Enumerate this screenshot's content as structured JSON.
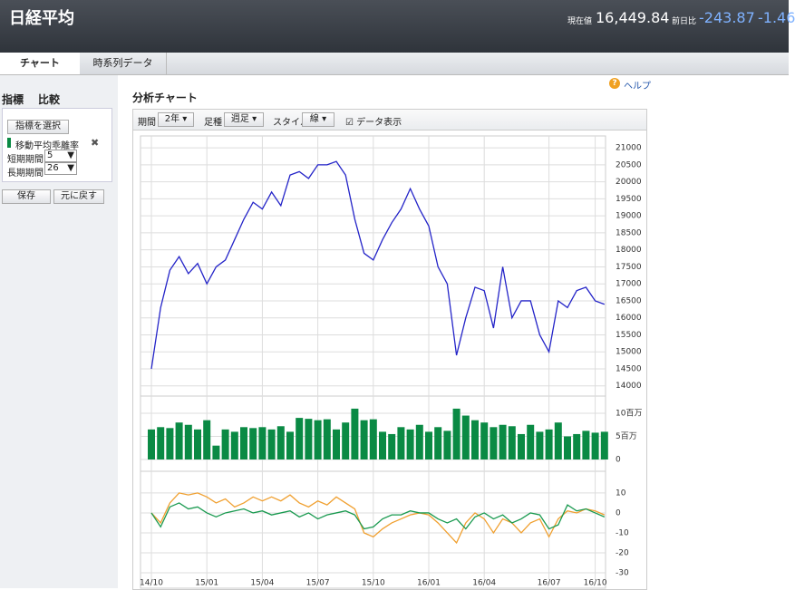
{
  "header": {
    "title": "日経平均",
    "price_label": "現在値",
    "price": "16,449.84",
    "change_label": "前日比",
    "change": "-243.87",
    "change_pct": "-1.46"
  },
  "tabs": [
    "チャート",
    "時系列データ"
  ],
  "sidebar": {
    "tabs": [
      "指標",
      "比較"
    ],
    "select": "指標を選択",
    "indicator": "移動平均乖離率",
    "short_label": "短期期間",
    "short_value": "5",
    "long_label": "長期期間",
    "long_value": "26",
    "save": "保存",
    "reset": "元に戻す"
  },
  "panel": {
    "help": "ヘルプ",
    "title": "分析チャート",
    "period_label": "期間",
    "period": "2年",
    "bar_label": "足種",
    "bar": "週足",
    "style_label": "スタイル",
    "style": "線",
    "show_data": "データ表示"
  },
  "chart_data": [
    {
      "type": "line",
      "color": "#2424c8",
      "values": [
        14500,
        16300,
        17400,
        17800,
        17300,
        17600,
        17000,
        17500,
        17700,
        18300,
        18900,
        19400,
        19200,
        19700,
        19300,
        20200,
        20300,
        20100,
        20500,
        20500,
        20600,
        20200,
        18900,
        17900,
        17700,
        18300,
        18800,
        19200,
        19800,
        19200,
        18700,
        17500,
        17000,
        14900,
        16000,
        16900,
        16800,
        15700,
        17500,
        16000,
        16500,
        16500,
        15500,
        15000,
        16500,
        16300,
        16800,
        16900,
        16500,
        16400
      ],
      "ylim": [
        13700,
        21350
      ],
      "yticks": [
        14000,
        14500,
        15000,
        15500,
        16000,
        16500,
        17000,
        17500,
        18000,
        18500,
        19000,
        19500,
        20000,
        20500,
        21000
      ],
      "grid": true
    },
    {
      "type": "bar",
      "color": "#0a8a44",
      "values": [
        6.5,
        7,
        6.8,
        8,
        7.5,
        6.5,
        8.5,
        3,
        6.5,
        6,
        7,
        6.8,
        7,
        6.5,
        7.2,
        6,
        9,
        8.8,
        8.5,
        8.7,
        6.5,
        8,
        11,
        8.5,
        8.7,
        6,
        5.5,
        7,
        6.5,
        7.5,
        6,
        7,
        6.2,
        11,
        9.5,
        8.5,
        8,
        7,
        7.5,
        7.2,
        5.5,
        7.5,
        6,
        6.5,
        8,
        5,
        5.5,
        6.2,
        5.8,
        6
      ],
      "ylim": [
        0,
        13.5
      ],
      "yticks": [
        0,
        {
          "value": 5,
          "label": "5百万"
        },
        {
          "value": 10,
          "label": "10百万"
        }
      ],
      "grid": true
    },
    {
      "type": "line",
      "categories": [
        "14/10",
        null,
        null,
        null,
        null,
        null,
        "15/01",
        null,
        null,
        null,
        null,
        null,
        "15/04",
        null,
        null,
        null,
        null,
        null,
        "15/07",
        null,
        null,
        null,
        null,
        null,
        "15/10",
        null,
        null,
        null,
        null,
        null,
        "16/01",
        null,
        null,
        null,
        null,
        null,
        "16/04",
        null,
        null,
        null,
        null,
        null,
        null,
        "16/07",
        null,
        null,
        null,
        null,
        "16/10",
        null
      ],
      "series": [
        {
          "color": "#f0a030",
          "values": [
            0,
            -5,
            5,
            10,
            9,
            10,
            8,
            5,
            7,
            3,
            5,
            8,
            6,
            8,
            6,
            9,
            5,
            3,
            6,
            4,
            8,
            5,
            2,
            -10,
            -12,
            -8,
            -5,
            -3,
            -1,
            0,
            -1,
            -5,
            -10,
            -15,
            -5,
            0,
            -3,
            -10,
            -3,
            -5,
            -10,
            -5,
            -3,
            -12,
            -3,
            1,
            0,
            2,
            1,
            -1
          ]
        },
        {
          "color": "#1a9a50",
          "values": [
            0,
            -7,
            3,
            5,
            2,
            3,
            0,
            -2,
            0,
            1,
            2,
            0,
            1,
            -1,
            0,
            1,
            -2,
            0,
            -3,
            -1,
            0,
            1,
            -1,
            -8,
            -7,
            -3,
            -1,
            -1,
            1,
            0,
            0,
            -3,
            -5,
            -3,
            -8,
            -2,
            0,
            -3,
            -1,
            -5,
            -3,
            0,
            -1,
            -8,
            -6,
            4,
            1,
            2,
            0,
            -2
          ]
        }
      ],
      "ylim": [
        -30,
        19.5
      ],
      "yticks": [
        -30,
        -20,
        -10,
        0,
        10
      ],
      "grid": true
    }
  ]
}
